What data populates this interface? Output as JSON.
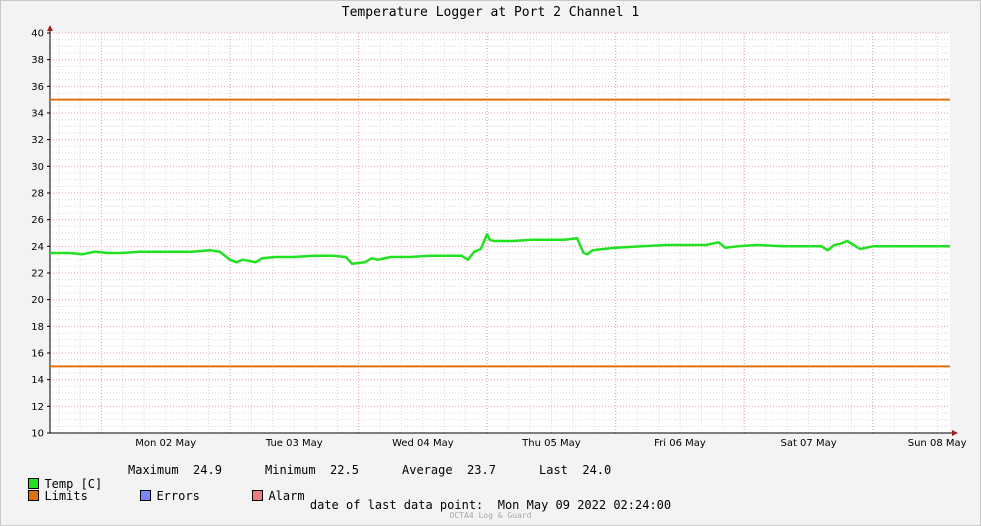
{
  "chart_data": {
    "type": "line",
    "title": "Temperature Logger at Port 2 Channel 1",
    "y_ticks": [
      10,
      12,
      14,
      16,
      18,
      20,
      22,
      24,
      26,
      28,
      30,
      32,
      34,
      36,
      38,
      40
    ],
    "ylim": [
      10,
      40
    ],
    "x_ticks": [
      "Mon 02 May",
      "Tue 03 May",
      "Wed 04 May",
      "Thu 05 May",
      "Fri 06 May",
      "Sat 07 May",
      "Sun 08 May"
    ],
    "x_day_range": [
      0.6,
      7.6
    ],
    "grid": true,
    "limits": [
      35,
      15
    ],
    "series": [
      {
        "name": "Temp [C]",
        "x": [
          0.6,
          0.75,
          0.85,
          0.95,
          1.05,
          1.15,
          1.3,
          1.5,
          1.7,
          1.85,
          1.92,
          2.0,
          2.05,
          2.1,
          2.2,
          2.25,
          2.35,
          2.5,
          2.65,
          2.8,
          2.9,
          2.95,
          3.05,
          3.1,
          3.15,
          3.25,
          3.4,
          3.55,
          3.7,
          3.8,
          3.85,
          3.9,
          3.95,
          4.0,
          4.02,
          4.05,
          4.1,
          4.2,
          4.35,
          4.5,
          4.6,
          4.7,
          4.75,
          4.78,
          4.82,
          4.9,
          5.0,
          5.2,
          5.4,
          5.6,
          5.7,
          5.8,
          5.85,
          5.95,
          6.1,
          6.3,
          6.5,
          6.6,
          6.65,
          6.7,
          6.75,
          6.8,
          6.85,
          6.9,
          7.0,
          7.2,
          7.6
        ],
        "values": [
          23.5,
          23.5,
          23.4,
          23.6,
          23.5,
          23.5,
          23.6,
          23.6,
          23.6,
          23.7,
          23.6,
          23.0,
          22.8,
          23.0,
          22.8,
          23.1,
          23.2,
          23.2,
          23.3,
          23.3,
          23.2,
          22.7,
          22.8,
          23.1,
          23.0,
          23.2,
          23.2,
          23.3,
          23.3,
          23.3,
          23.0,
          23.6,
          23.8,
          24.9,
          24.5,
          24.4,
          24.4,
          24.4,
          24.5,
          24.5,
          24.5,
          24.6,
          23.5,
          23.4,
          23.7,
          23.8,
          23.9,
          24.0,
          24.1,
          24.1,
          24.1,
          24.3,
          23.9,
          24.0,
          24.1,
          24.0,
          24.0,
          24.0,
          23.7,
          24.1,
          24.2,
          24.4,
          24.1,
          23.8,
          24.0,
          24.0,
          24.0
        ]
      }
    ]
  },
  "legend": {
    "temp_label": "Temp [C]",
    "limits_label": "Limits",
    "errors_label": "Errors",
    "alarm_label": "Alarm",
    "maximum_label": "Maximum",
    "maximum_value": "24.9",
    "minimum_label": "Minimum",
    "minimum_value": "22.5",
    "average_label": "Average",
    "average_value": "23.7",
    "last_label": "Last",
    "last_value": "24.0"
  },
  "footer": {
    "last_point_label": "date of last data point:",
    "last_point_value": "Mon May 09 2022 02:24:00",
    "credit": "OCTA4 Log & Guard"
  },
  "colors": {
    "temp": "#22e022",
    "limits": "#e0700a",
    "errors": "#7a86ff",
    "alarm": "#ef7c7c",
    "grid_major": "#e6a0a0",
    "grid_minor": "#d9d9d9"
  }
}
